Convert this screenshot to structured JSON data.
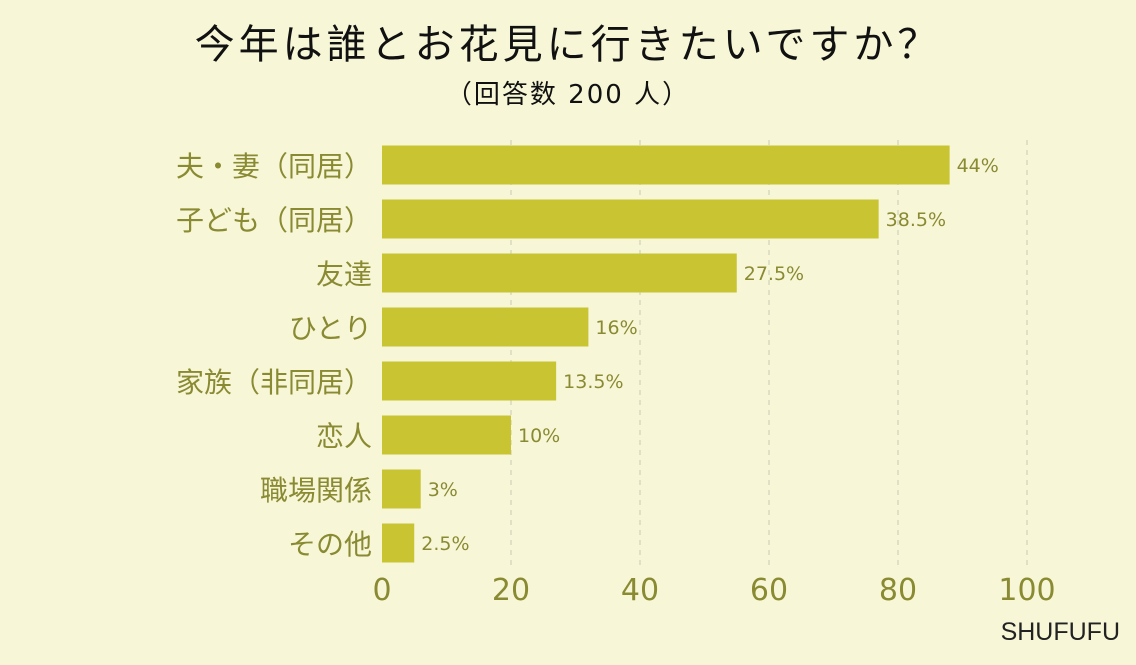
{
  "title": "今年は誰とお花見に行きたいですか？",
  "subtitle": "（回答数 200 人）",
  "watermark": "SHUFUFU",
  "colors": {
    "background": "#f7f7d8",
    "bar": "#c9c432",
    "axis_text": "#8a8a32",
    "grid": "#d8d8c0",
    "title_text": "#111111"
  },
  "chart_data": {
    "type": "bar",
    "orientation": "horizontal",
    "categories": [
      "夫・妻（同居）",
      "子ども（同居）",
      "友達",
      "ひとり",
      "家族（非同居）",
      "恋人",
      "職場関係",
      "その他"
    ],
    "values": [
      44,
      38.5,
      27.5,
      16,
      13.5,
      10,
      3,
      2.5
    ],
    "value_labels": [
      "44%",
      "38.5%",
      "27.5%",
      "16%",
      "13.5%",
      "10%",
      "3%",
      "2.5%"
    ],
    "xlim": [
      0,
      50
    ],
    "x_ticks": [
      0,
      10,
      20,
      30,
      40,
      50
    ],
    "x_tick_labels": [
      "0",
      "20",
      "40",
      "60",
      "80",
      "100"
    ],
    "grid": true
  }
}
